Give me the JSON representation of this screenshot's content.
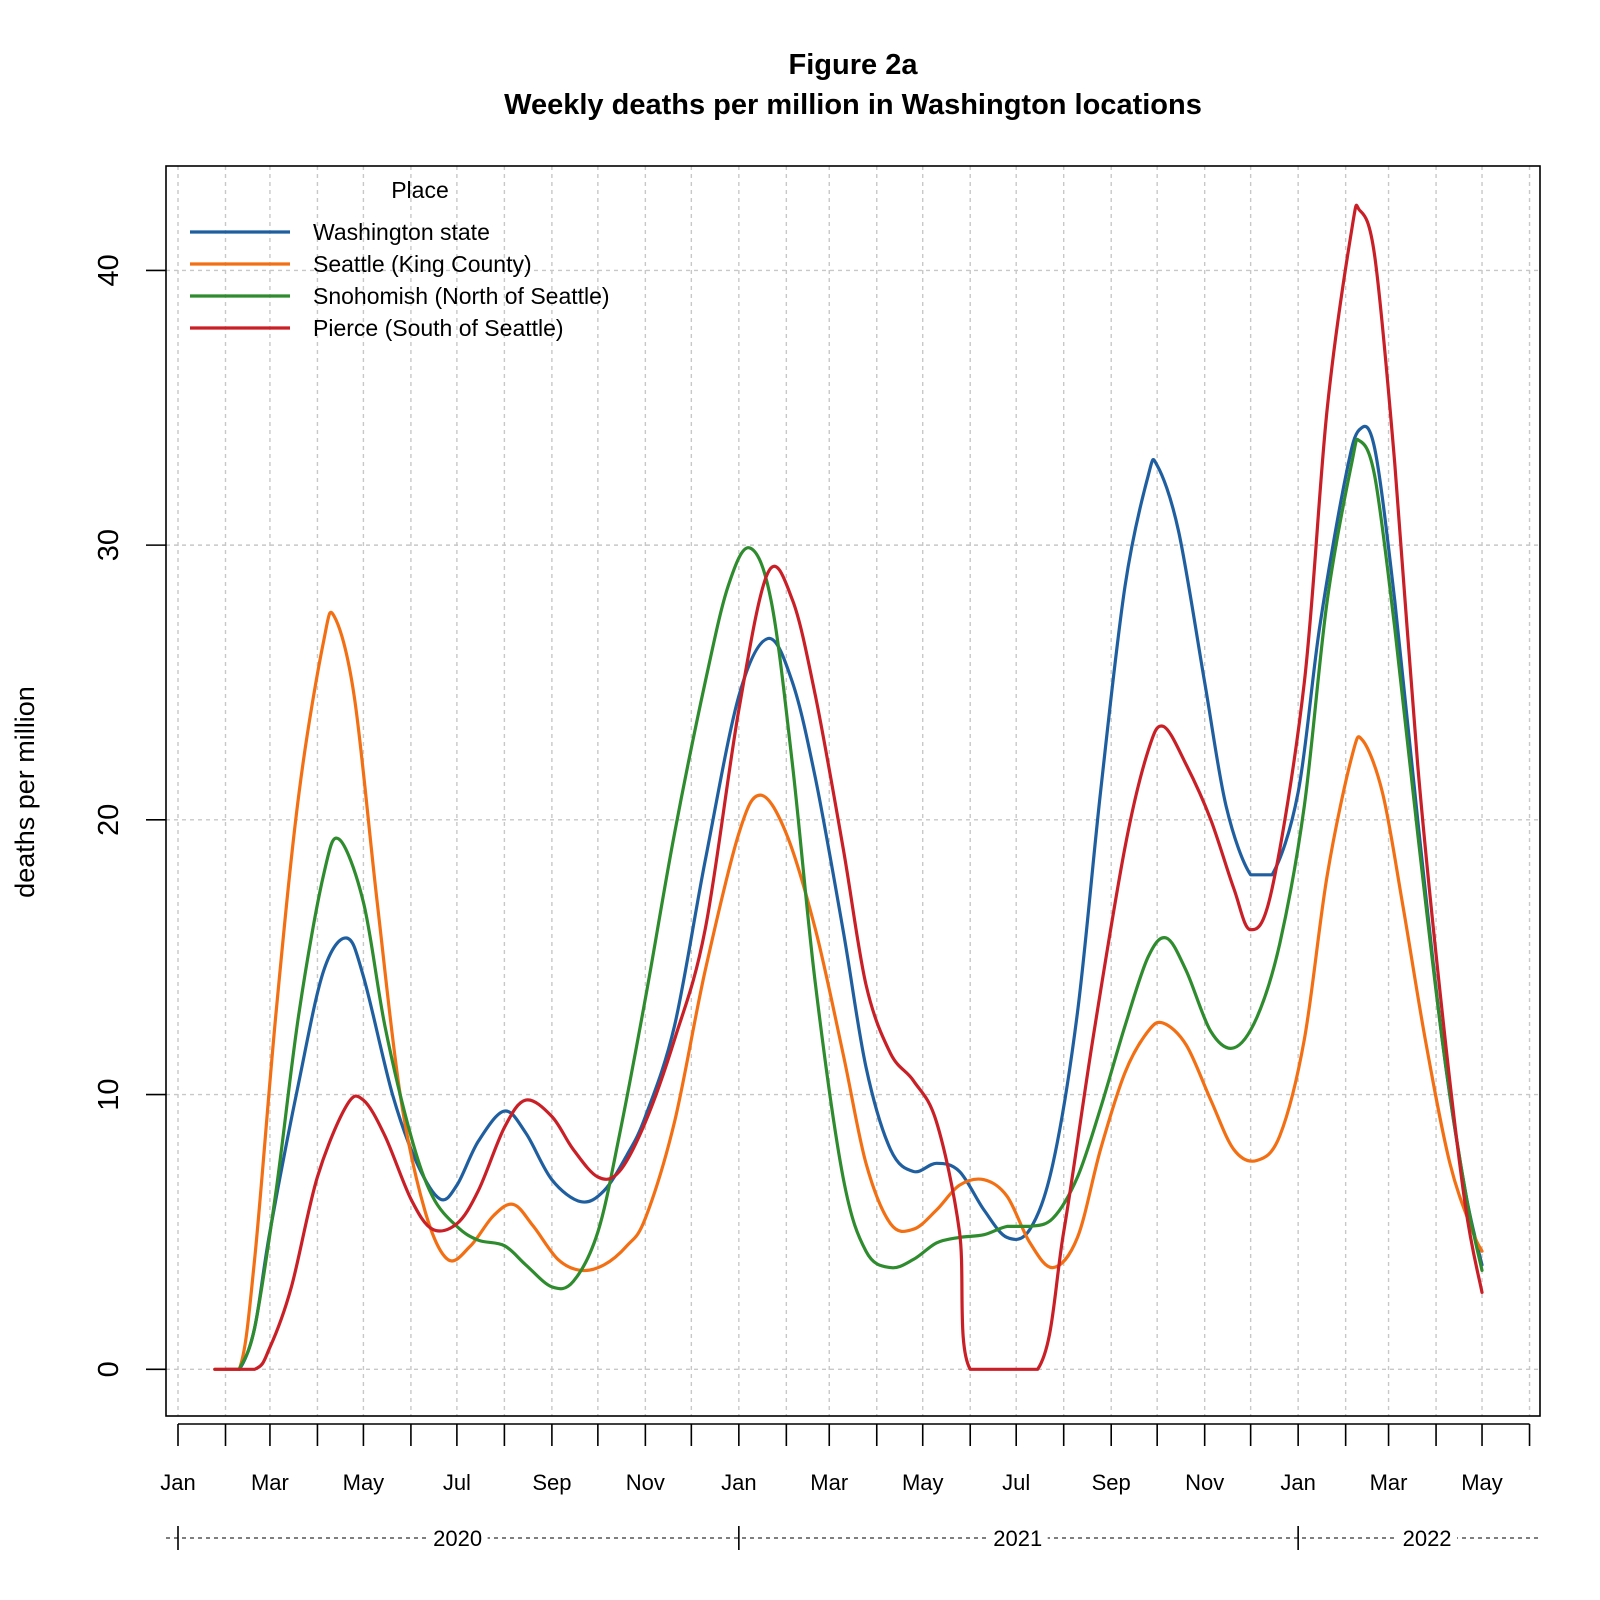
{
  "chart_data": {
    "type": "line",
    "title": "Figure 2a",
    "subtitle": "Weekly deaths per million in Washington locations",
    "xlabel": "",
    "ylabel": "deaths per million",
    "xlim": [
      "2020-01-01",
      "2022-05-31"
    ],
    "ylim": [
      -1.7,
      43.8
    ],
    "yticks": [
      0,
      10,
      20,
      30,
      40
    ],
    "grid": true,
    "legend": {
      "title": "Place",
      "position": "top-left"
    },
    "month_ticks": [
      {
        "date": "2020-01-01",
        "label": "Jan"
      },
      {
        "date": "2020-02-01",
        "label": ""
      },
      {
        "date": "2020-03-01",
        "label": "Mar"
      },
      {
        "date": "2020-04-01",
        "label": ""
      },
      {
        "date": "2020-05-01",
        "label": "May"
      },
      {
        "date": "2020-06-01",
        "label": ""
      },
      {
        "date": "2020-07-01",
        "label": "Jul"
      },
      {
        "date": "2020-08-01",
        "label": ""
      },
      {
        "date": "2020-09-01",
        "label": "Sep"
      },
      {
        "date": "2020-10-01",
        "label": ""
      },
      {
        "date": "2020-11-01",
        "label": "Nov"
      },
      {
        "date": "2020-12-01",
        "label": ""
      },
      {
        "date": "2021-01-01",
        "label": "Jan"
      },
      {
        "date": "2021-02-01",
        "label": ""
      },
      {
        "date": "2021-03-01",
        "label": "Mar"
      },
      {
        "date": "2021-04-01",
        "label": ""
      },
      {
        "date": "2021-05-01",
        "label": "May"
      },
      {
        "date": "2021-06-01",
        "label": ""
      },
      {
        "date": "2021-07-01",
        "label": "Jul"
      },
      {
        "date": "2021-08-01",
        "label": ""
      },
      {
        "date": "2021-09-01",
        "label": "Sep"
      },
      {
        "date": "2021-10-01",
        "label": ""
      },
      {
        "date": "2021-11-01",
        "label": "Nov"
      },
      {
        "date": "2021-12-01",
        "label": ""
      },
      {
        "date": "2022-01-01",
        "label": "Jan"
      },
      {
        "date": "2022-02-01",
        "label": ""
      },
      {
        "date": "2022-03-01",
        "label": "Mar"
      },
      {
        "date": "2022-04-01",
        "label": ""
      },
      {
        "date": "2022-05-01",
        "label": "May"
      },
      {
        "date": "2022-06-01",
        "label": ""
      }
    ],
    "years": [
      {
        "label": "2020",
        "start": "2020-01-01",
        "end": "2020-12-31"
      },
      {
        "label": "2021",
        "start": "2021-01-01",
        "end": "2021-12-31"
      },
      {
        "label": "2022",
        "start": "2022-01-01",
        "end": "2022-05-31"
      }
    ],
    "series": [
      {
        "name": "Washington state",
        "color": "#1f5fa0",
        "points": [
          [
            "2020-02-01",
            0
          ],
          [
            "2020-02-10",
            0
          ],
          [
            "2020-02-20",
            1.5
          ],
          [
            "2020-03-01",
            5.0
          ],
          [
            "2020-03-20",
            10.5
          ],
          [
            "2020-04-05",
            14.5
          ],
          [
            "2020-04-20",
            15.7
          ],
          [
            "2020-05-01",
            14.3
          ],
          [
            "2020-05-20",
            10.0
          ],
          [
            "2020-06-05",
            7.5
          ],
          [
            "2020-06-20",
            6.2
          ],
          [
            "2020-07-01",
            6.7
          ],
          [
            "2020-07-15",
            8.3
          ],
          [
            "2020-08-01",
            9.4
          ],
          [
            "2020-08-15",
            8.6
          ],
          [
            "2020-09-01",
            6.9
          ],
          [
            "2020-09-20",
            6.1
          ],
          [
            "2020-10-05",
            6.5
          ],
          [
            "2020-10-20",
            7.8
          ],
          [
            "2020-11-01",
            9.2
          ],
          [
            "2020-11-20",
            12.5
          ],
          [
            "2020-12-10",
            18.5
          ],
          [
            "2021-01-01",
            24.5
          ],
          [
            "2021-01-20",
            26.6
          ],
          [
            "2021-02-05",
            25.0
          ],
          [
            "2021-02-20",
            21.5
          ],
          [
            "2021-03-10",
            16.0
          ],
          [
            "2021-03-25",
            11.0
          ],
          [
            "2021-04-10",
            8.0
          ],
          [
            "2021-04-25",
            7.2
          ],
          [
            "2021-05-10",
            7.5
          ],
          [
            "2021-05-25",
            7.2
          ],
          [
            "2021-06-10",
            5.8
          ],
          [
            "2021-06-25",
            4.8
          ],
          [
            "2021-07-10",
            5.1
          ],
          [
            "2021-07-25",
            7.5
          ],
          [
            "2021-08-10",
            13.0
          ],
          [
            "2021-08-25",
            21.0
          ],
          [
            "2021-09-10",
            28.5
          ],
          [
            "2021-09-25",
            32.5
          ],
          [
            "2021-10-01",
            32.9
          ],
          [
            "2021-10-15",
            30.5
          ],
          [
            "2021-11-01",
            25.0
          ],
          [
            "2021-11-15",
            20.5
          ],
          [
            "2021-12-01",
            18.0
          ],
          [
            "2021-12-15",
            18.0
          ],
          [
            "2022-01-01",
            21.0
          ],
          [
            "2022-01-15",
            27.0
          ],
          [
            "2022-02-01",
            32.5
          ],
          [
            "2022-02-10",
            34.2
          ],
          [
            "2022-02-20",
            33.5
          ],
          [
            "2022-03-05",
            28.0
          ],
          [
            "2022-03-20",
            20.0
          ],
          [
            "2022-04-05",
            12.0
          ],
          [
            "2022-04-20",
            6.5
          ],
          [
            "2022-05-01",
            3.8
          ]
        ]
      },
      {
        "name": "Seattle (King County)",
        "color": "#f36f13",
        "points": [
          [
            "2020-01-25",
            0
          ],
          [
            "2020-02-10",
            0
          ],
          [
            "2020-02-20",
            4.0
          ],
          [
            "2020-03-05",
            13.0
          ],
          [
            "2020-03-20",
            21.0
          ],
          [
            "2020-04-05",
            26.5
          ],
          [
            "2020-04-12",
            27.4
          ],
          [
            "2020-04-25",
            24.5
          ],
          [
            "2020-05-10",
            17.0
          ],
          [
            "2020-05-25",
            10.0
          ],
          [
            "2020-06-10",
            5.8
          ],
          [
            "2020-06-25",
            4.0
          ],
          [
            "2020-07-10",
            4.5
          ],
          [
            "2020-07-25",
            5.6
          ],
          [
            "2020-08-07",
            6.0
          ],
          [
            "2020-08-20",
            5.2
          ],
          [
            "2020-09-05",
            4.0
          ],
          [
            "2020-09-20",
            3.6
          ],
          [
            "2020-10-05",
            3.8
          ],
          [
            "2020-10-20",
            4.5
          ],
          [
            "2020-11-01",
            5.5
          ],
          [
            "2020-11-20",
            9.0
          ],
          [
            "2020-12-10",
            14.5
          ],
          [
            "2021-01-01",
            19.5
          ],
          [
            "2021-01-15",
            20.9
          ],
          [
            "2021-02-01",
            19.5
          ],
          [
            "2021-02-20",
            16.0
          ],
          [
            "2021-03-10",
            11.5
          ],
          [
            "2021-03-25",
            7.5
          ],
          [
            "2021-04-10",
            5.3
          ],
          [
            "2021-04-25",
            5.1
          ],
          [
            "2021-05-10",
            5.8
          ],
          [
            "2021-05-25",
            6.7
          ],
          [
            "2021-06-10",
            6.9
          ],
          [
            "2021-06-25",
            6.3
          ],
          [
            "2021-07-10",
            4.6
          ],
          [
            "2021-07-25",
            3.7
          ],
          [
            "2021-08-10",
            4.8
          ],
          [
            "2021-08-25",
            8.0
          ],
          [
            "2021-09-10",
            10.8
          ],
          [
            "2021-09-25",
            12.3
          ],
          [
            "2021-10-05",
            12.6
          ],
          [
            "2021-10-20",
            11.8
          ],
          [
            "2021-11-05",
            9.8
          ],
          [
            "2021-11-20",
            8.0
          ],
          [
            "2021-12-05",
            7.6
          ],
          [
            "2021-12-20",
            8.5
          ],
          [
            "2022-01-05",
            12.0
          ],
          [
            "2022-01-20",
            18.0
          ],
          [
            "2022-02-05",
            22.3
          ],
          [
            "2022-02-12",
            22.9
          ],
          [
            "2022-02-25",
            21.0
          ],
          [
            "2022-03-10",
            17.0
          ],
          [
            "2022-03-25",
            12.0
          ],
          [
            "2022-04-10",
            7.5
          ],
          [
            "2022-04-25",
            5.0
          ],
          [
            "2022-05-01",
            4.3
          ]
        ]
      },
      {
        "name": "Snohomish (North of Seattle)",
        "color": "#2e8b2e",
        "points": [
          [
            "2020-02-10",
            0
          ],
          [
            "2020-02-20",
            1.5
          ],
          [
            "2020-03-05",
            6.5
          ],
          [
            "2020-03-20",
            13.0
          ],
          [
            "2020-04-05",
            18.0
          ],
          [
            "2020-04-15",
            19.3
          ],
          [
            "2020-05-01",
            17.0
          ],
          [
            "2020-05-15",
            12.5
          ],
          [
            "2020-06-01",
            8.5
          ],
          [
            "2020-06-15",
            6.3
          ],
          [
            "2020-07-01",
            5.2
          ],
          [
            "2020-07-15",
            4.7
          ],
          [
            "2020-08-01",
            4.5
          ],
          [
            "2020-08-15",
            3.8
          ],
          [
            "2020-09-01",
            3.0
          ],
          [
            "2020-09-15",
            3.2
          ],
          [
            "2020-10-01",
            5.0
          ],
          [
            "2020-10-15",
            8.5
          ],
          [
            "2020-11-01",
            13.5
          ],
          [
            "2020-11-20",
            19.5
          ],
          [
            "2020-12-10",
            25.0
          ],
          [
            "2020-12-25",
            28.5
          ],
          [
            "2021-01-08",
            29.9
          ],
          [
            "2021-01-22",
            28.0
          ],
          [
            "2021-02-05",
            22.0
          ],
          [
            "2021-02-20",
            14.0
          ],
          [
            "2021-03-10",
            7.0
          ],
          [
            "2021-03-25",
            4.3
          ],
          [
            "2021-04-10",
            3.7
          ],
          [
            "2021-04-25",
            4.0
          ],
          [
            "2021-05-10",
            4.6
          ],
          [
            "2021-05-25",
            4.8
          ],
          [
            "2021-06-10",
            4.9
          ],
          [
            "2021-06-25",
            5.2
          ],
          [
            "2021-07-10",
            5.2
          ],
          [
            "2021-07-25",
            5.5
          ],
          [
            "2021-08-10",
            7.0
          ],
          [
            "2021-08-25",
            9.5
          ],
          [
            "2021-09-10",
            12.5
          ],
          [
            "2021-09-25",
            15.0
          ],
          [
            "2021-10-07",
            15.7
          ],
          [
            "2021-10-20",
            14.5
          ],
          [
            "2021-11-05",
            12.3
          ],
          [
            "2021-11-20",
            11.7
          ],
          [
            "2021-12-05",
            12.8
          ],
          [
            "2021-12-20",
            15.5
          ],
          [
            "2022-01-05",
            20.5
          ],
          [
            "2022-01-20",
            28.0
          ],
          [
            "2022-02-05",
            33.0
          ],
          [
            "2022-02-10",
            33.8
          ],
          [
            "2022-02-20",
            32.5
          ],
          [
            "2022-03-05",
            27.0
          ],
          [
            "2022-03-20",
            19.5
          ],
          [
            "2022-04-05",
            12.0
          ],
          [
            "2022-04-20",
            6.5
          ],
          [
            "2022-05-01",
            3.6
          ]
        ]
      },
      {
        "name": "Pierce (South of Seattle)",
        "color": "#c91f26",
        "points": [
          [
            "2020-01-25",
            0
          ],
          [
            "2020-02-20",
            0
          ],
          [
            "2020-03-01",
            0.8
          ],
          [
            "2020-03-15",
            3.0
          ],
          [
            "2020-04-01",
            7.0
          ],
          [
            "2020-04-20",
            9.6
          ],
          [
            "2020-05-01",
            9.8
          ],
          [
            "2020-05-15",
            8.5
          ],
          [
            "2020-06-01",
            6.2
          ],
          [
            "2020-06-15",
            5.1
          ],
          [
            "2020-07-01",
            5.3
          ],
          [
            "2020-07-15",
            6.5
          ],
          [
            "2020-08-01",
            8.8
          ],
          [
            "2020-08-15",
            9.8
          ],
          [
            "2020-09-01",
            9.2
          ],
          [
            "2020-09-15",
            8.0
          ],
          [
            "2020-10-01",
            7.0
          ],
          [
            "2020-10-15",
            7.2
          ],
          [
            "2020-11-01",
            9.0
          ],
          [
            "2020-11-20",
            12.0
          ],
          [
            "2020-12-10",
            16.0
          ],
          [
            "2021-01-01",
            24.0
          ],
          [
            "2021-01-20",
            29.0
          ],
          [
            "2021-02-05",
            28.0
          ],
          [
            "2021-02-20",
            24.5
          ],
          [
            "2021-03-10",
            19.0
          ],
          [
            "2021-03-25",
            14.0
          ],
          [
            "2021-04-10",
            11.5
          ],
          [
            "2021-04-25",
            10.5
          ],
          [
            "2021-05-10",
            9.0
          ],
          [
            "2021-05-25",
            5.0
          ],
          [
            "2021-06-01",
            0
          ],
          [
            "2021-07-15",
            0
          ],
          [
            "2021-08-01",
            5.0
          ],
          [
            "2021-08-20",
            12.0
          ],
          [
            "2021-09-10",
            19.0
          ],
          [
            "2021-09-25",
            22.5
          ],
          [
            "2021-10-05",
            23.4
          ],
          [
            "2021-10-20",
            22.0
          ],
          [
            "2021-11-05",
            20.0
          ],
          [
            "2021-11-20",
            17.5
          ],
          [
            "2021-12-01",
            16.0
          ],
          [
            "2021-12-15",
            17.5
          ],
          [
            "2022-01-05",
            25.0
          ],
          [
            "2022-01-20",
            35.0
          ],
          [
            "2022-02-05",
            41.5
          ],
          [
            "2022-02-10",
            42.2
          ],
          [
            "2022-02-20",
            40.5
          ],
          [
            "2022-03-05",
            33.0
          ],
          [
            "2022-03-20",
            22.0
          ],
          [
            "2022-04-05",
            13.0
          ],
          [
            "2022-04-20",
            6.0
          ],
          [
            "2022-05-01",
            2.8
          ]
        ]
      }
    ]
  }
}
